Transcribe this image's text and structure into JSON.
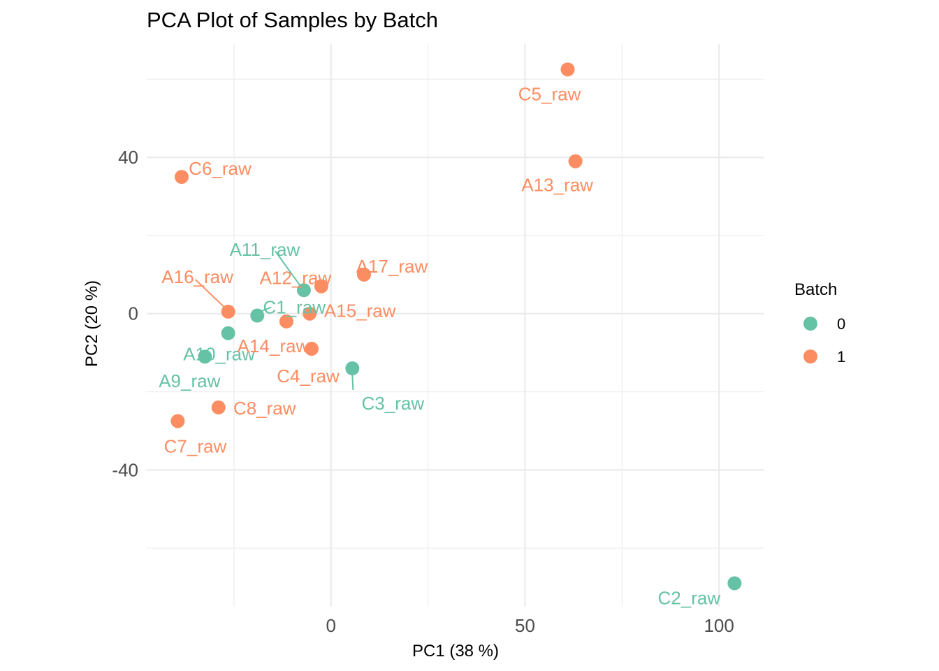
{
  "chart_data": {
    "type": "scatter",
    "title": "PCA Plot of Samples by Batch",
    "xlabel": "PC1 (38 %)",
    "ylabel": "PC2 (20 %)",
    "xlim": [
      -47.5,
      111.5
    ],
    "ylim": [
      -75,
      69
    ],
    "x_ticks": [
      0,
      50,
      100
    ],
    "x_tick_labels": [
      "0",
      "50",
      "100"
    ],
    "y_ticks": [
      -40,
      0,
      40
    ],
    "y_tick_labels": [
      "-40",
      "0",
      "40"
    ],
    "grid": true,
    "legend": {
      "title": "Batch",
      "position": "right",
      "entries": [
        {
          "label": "0",
          "color": "#66C2A5"
        },
        {
          "label": "1",
          "color": "#FC8D62"
        }
      ]
    },
    "series": [
      {
        "name": "0",
        "color": "#66C2A5",
        "points": [
          {
            "label": "A11_raw",
            "x": -7.0,
            "y": 6.0
          },
          {
            "label": "C1_raw",
            "x": -19.0,
            "y": -0.5
          },
          {
            "label": "A10_raw",
            "x": -26.5,
            "y": -5.0
          },
          {
            "label": "A9_raw",
            "x": -32.5,
            "y": -11.0
          },
          {
            "label": "C3_raw",
            "x": 5.5,
            "y": -14.0
          },
          {
            "label": "C2_raw",
            "x": 104.0,
            "y": -69.0
          }
        ]
      },
      {
        "name": "1",
        "color": "#FC8D62",
        "points": [
          {
            "label": "C5_raw",
            "x": 61.0,
            "y": 62.5
          },
          {
            "label": "A13_raw",
            "x": 63.0,
            "y": 39.0
          },
          {
            "label": "C6_raw",
            "x": -38.5,
            "y": 35.0
          },
          {
            "label": "A17_raw",
            "x": 8.5,
            "y": 10.0
          },
          {
            "label": "A12_raw",
            "x": -2.5,
            "y": 7.0
          },
          {
            "label": "A16_raw",
            "x": -26.5,
            "y": 0.5
          },
          {
            "label": "A15_raw",
            "x": -5.5,
            "y": 0.0
          },
          {
            "label": "A14_raw",
            "x": -11.5,
            "y": -2.0
          },
          {
            "label": "C4_raw",
            "x": -5.0,
            "y": -9.0
          },
          {
            "label": "C8_raw",
            "x": -29.0,
            "y": -24.0
          },
          {
            "label": "C7_raw",
            "x": -39.5,
            "y": -27.5
          }
        ]
      }
    ]
  }
}
